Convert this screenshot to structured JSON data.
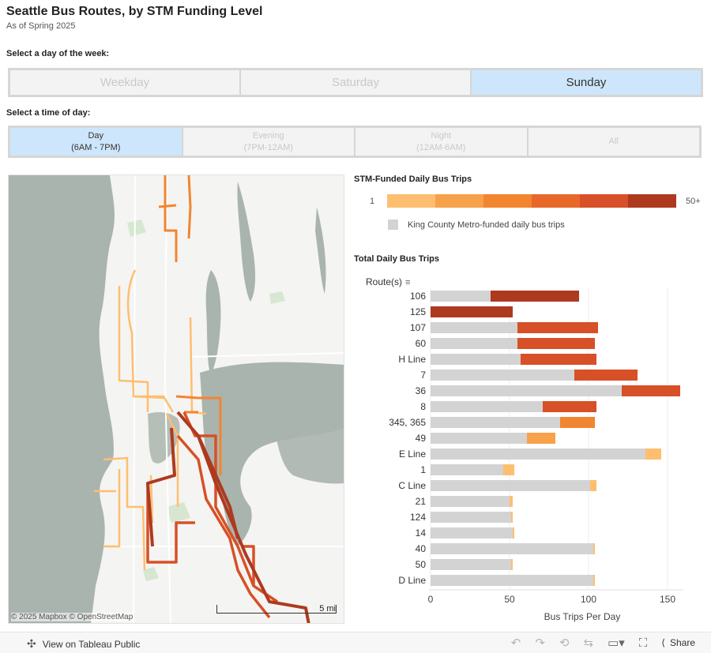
{
  "header": {
    "title": "Seattle Bus Routes, by STM Funding Level",
    "subtitle": "As of Spring 2025"
  },
  "day_filter": {
    "label": "Select a day of the week:",
    "options": [
      "Weekday",
      "Saturday",
      "Sunday"
    ],
    "selected": "Sunday"
  },
  "time_filter": {
    "label": "Select a time of day:",
    "options": [
      {
        "name": "Day",
        "range": "(6AM - 7PM)"
      },
      {
        "name": "Evening",
        "range": "(7PM-12AM)"
      },
      {
        "name": "Night",
        "range": "(12AM-6AM)"
      },
      {
        "name": "All",
        "range": ""
      }
    ],
    "selected": "Day"
  },
  "map": {
    "attribution": "© 2025 Mapbox  © OpenStreetMap",
    "scale_label": "5 mi",
    "water_color": "#aab4ae",
    "land_color": "#f4f4f2"
  },
  "legend": {
    "title": "STM-Funded Daily Bus Trips",
    "low_label": "1",
    "high_label": "50+",
    "colors": [
      "#fdbf6f",
      "#f7a14a",
      "#f28530",
      "#e8682a",
      "#d75027",
      "#ad3a1f"
    ],
    "kcm_label": "King County Metro-funded daily bus trips",
    "kcm_color": "#d3d3d3"
  },
  "chart_data": {
    "type": "bar",
    "title": "Total Daily Bus Trips",
    "row_header": "Route(s)",
    "xlabel": "Bus Trips Per Day",
    "xlim": [
      0,
      160
    ],
    "xticks": [
      0,
      50,
      100,
      150
    ],
    "stacked": true,
    "categories": [
      "106",
      "125",
      "107",
      "60",
      "H Line",
      "7",
      "36",
      "8",
      "345, 365",
      "49",
      "E Line",
      "1",
      "C Line",
      "21",
      "124",
      "14",
      "40",
      "50",
      "D Line"
    ],
    "series": [
      {
        "values": [
          38,
          0,
          55,
          55,
          57,
          91,
          121,
          71,
          82,
          61,
          136,
          46,
          101,
          50,
          51,
          52,
          103,
          51,
          103
        ]
      },
      {
        "values": [
          56,
          52,
          51,
          49,
          48,
          40,
          37,
          34,
          22,
          18,
          10,
          7,
          4,
          2,
          1,
          1,
          1,
          1,
          1
        ]
      }
    ],
    "stm_colors": [
      "#ad3a1f",
      "#ad3a1f",
      "#d75027",
      "#d75027",
      "#d75027",
      "#d75027",
      "#d75027",
      "#d75027",
      "#f28530",
      "#f7a14a",
      "#fdbf6f",
      "#fdbf6f",
      "#fdbf6f",
      "#fdbf6f",
      "#fdbf6f",
      "#fdbf6f",
      "#fdbf6f",
      "#fdbf6f",
      "#fdbf6f"
    ],
    "grid": true
  },
  "footer": {
    "view_label": "View on Tableau Public",
    "share_label": "Share"
  }
}
